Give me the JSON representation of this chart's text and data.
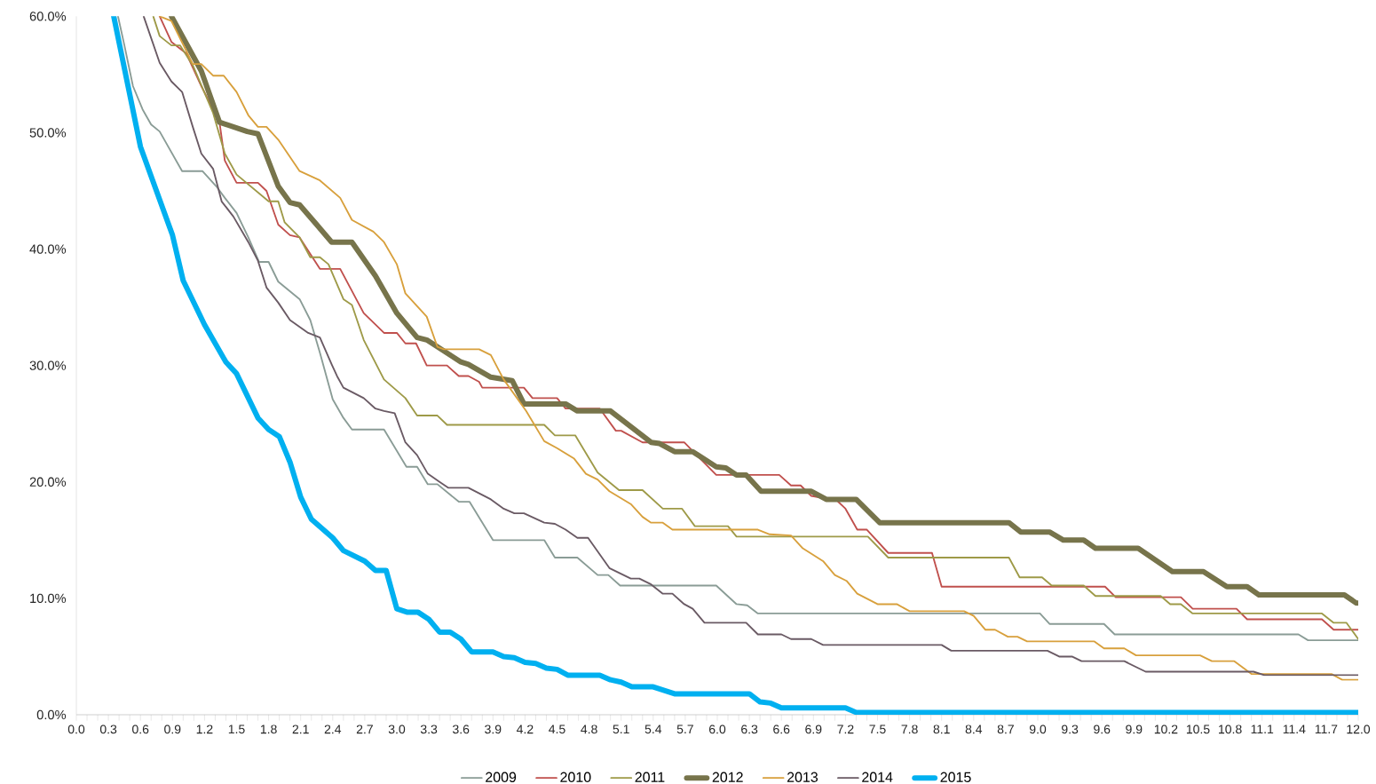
{
  "chart_data": {
    "type": "line",
    "ylim": [
      0,
      60
    ],
    "xlim": [
      0,
      12
    ],
    "yticks": [
      {
        "value": 0,
        "label": "0.0%"
      },
      {
        "value": 10,
        "label": "10.0%"
      },
      {
        "value": 20,
        "label": "20.0%"
      },
      {
        "value": 30,
        "label": "30.0%"
      },
      {
        "value": 40,
        "label": "40.0%"
      },
      {
        "value": 50,
        "label": "50.0%"
      },
      {
        "value": 60,
        "label": "60.0%"
      }
    ],
    "xticks": [
      {
        "value": 0,
        "label": "0.0"
      },
      {
        "value": 0.3,
        "label": "0.3"
      },
      {
        "value": 0.6,
        "label": "0.6"
      },
      {
        "value": 0.9,
        "label": "0.9"
      },
      {
        "value": 1.2,
        "label": "1.2"
      },
      {
        "value": 1.5,
        "label": "1.5"
      },
      {
        "value": 1.8,
        "label": "1.8"
      },
      {
        "value": 2.1,
        "label": "2.1"
      },
      {
        "value": 2.4,
        "label": "2.4"
      },
      {
        "value": 2.7,
        "label": "2.7"
      },
      {
        "value": 3,
        "label": "3.0"
      },
      {
        "value": 3.3,
        "label": "3.3"
      },
      {
        "value": 3.6,
        "label": "3.6"
      },
      {
        "value": 3.9,
        "label": "3.9"
      },
      {
        "value": 4.2,
        "label": "4.2"
      },
      {
        "value": 4.5,
        "label": "4.5"
      },
      {
        "value": 4.8,
        "label": "4.8"
      },
      {
        "value": 5.1,
        "label": "5.1"
      },
      {
        "value": 5.4,
        "label": "5.4"
      },
      {
        "value": 5.7,
        "label": "5.7"
      },
      {
        "value": 6,
        "label": "6.0"
      },
      {
        "value": 6.3,
        "label": "6.3"
      },
      {
        "value": 6.6,
        "label": "6.6"
      },
      {
        "value": 6.9,
        "label": "6.9"
      },
      {
        "value": 7.2,
        "label": "7.2"
      },
      {
        "value": 7.5,
        "label": "7.5"
      },
      {
        "value": 7.8,
        "label": "7.8"
      },
      {
        "value": 8.1,
        "label": "8.1"
      },
      {
        "value": 8.4,
        "label": "8.4"
      },
      {
        "value": 8.7,
        "label": "8.7"
      },
      {
        "value": 9,
        "label": "9.0"
      },
      {
        "value": 9.3,
        "label": "9.3"
      },
      {
        "value": 9.6,
        "label": "9.6"
      },
      {
        "value": 9.9,
        "label": "9.9"
      },
      {
        "value": 10.2,
        "label": "10.2"
      },
      {
        "value": 10.5,
        "label": "10.5"
      },
      {
        "value": 10.8,
        "label": "10.8"
      },
      {
        "value": 11.1,
        "label": "11.1"
      },
      {
        "value": 11.4,
        "label": "11.4"
      },
      {
        "value": 11.7,
        "label": "11.7"
      },
      {
        "value": 12,
        "label": "12.0"
      }
    ],
    "grid": false,
    "legend": "bottom",
    "marker": "none",
    "line_style": "solid",
    "series": [
      {
        "name": "2009",
        "color": "#8a9c96",
        "x": [
          0.39,
          0.45,
          0.53,
          0.62,
          0.7,
          0.78,
          0.99,
          1.18,
          1.31,
          1.39,
          1.5,
          1.61,
          1.71,
          1.8,
          1.89,
          2.09,
          2.19,
          2.28,
          2.4,
          2.5,
          2.58,
          2.88,
          3.09,
          3.19,
          3.29,
          3.38,
          3.58,
          3.68,
          3.9,
          4.38,
          4.48,
          4.69,
          4.88,
          4.98,
          5.09,
          5.99,
          6.18,
          6.28,
          6.38,
          9.02,
          9.11,
          9.62,
          9.72,
          11.44,
          11.53,
          12
        ],
        "values": [
          60,
          57.5,
          54.0,
          52.0,
          50.7,
          50.1,
          46.7,
          46.7,
          45.4,
          44.4,
          43.1,
          41.0,
          38.9,
          38.9,
          37.2,
          35.7,
          33.9,
          31.1,
          27.1,
          25.5,
          24.5,
          24.5,
          21.3,
          21.3,
          19.8,
          19.8,
          18.3,
          18.3,
          15.0,
          15.0,
          13.5,
          13.5,
          12.0,
          12.0,
          11.1,
          11.1,
          9.5,
          9.4,
          8.7,
          8.7,
          7.8,
          7.8,
          6.9,
          6.9,
          6.4,
          6.4
        ]
      },
      {
        "name": "2010",
        "color": "#c0504d",
        "x": [
          0.78,
          0.89,
          1.03,
          1.17,
          1.34,
          1.39,
          1.5,
          1.7,
          1.78,
          1.89,
          2.0,
          2.09,
          2.28,
          2.47,
          2.69,
          2.88,
          3.0,
          3.08,
          3.18,
          3.28,
          3.47,
          3.58,
          3.67,
          3.77,
          3.8,
          4.19,
          4.27,
          4.5,
          4.58,
          4.9,
          5.05,
          5.1,
          5.3,
          5.69,
          5.99,
          6.58,
          6.69,
          6.78,
          6.88,
          7.12,
          7.2,
          7.31,
          7.4,
          7.6,
          8.01,
          8.1,
          9.63,
          9.73,
          10.34,
          10.45,
          10.86,
          10.96,
          11.66,
          11.77,
          12
        ],
        "values": [
          60,
          57.8,
          56.8,
          54.0,
          50.9,
          47.6,
          45.7,
          45.7,
          45.0,
          42.1,
          41.2,
          41.0,
          38.3,
          38.3,
          34.5,
          32.8,
          32.8,
          31.9,
          31.9,
          30.0,
          30.0,
          29.1,
          29.1,
          28.6,
          28.1,
          28.1,
          27.2,
          27.2,
          26.3,
          26.3,
          24.4,
          24.4,
          23.4,
          23.4,
          20.6,
          20.6,
          19.7,
          19.7,
          18.8,
          18.4,
          17.7,
          15.9,
          15.9,
          13.9,
          13.9,
          11.0,
          11.0,
          10.1,
          10.1,
          9.1,
          9.1,
          8.2,
          8.2,
          7.3,
          7.3
        ]
      },
      {
        "name": "2011",
        "color": "#9e9a48",
        "x": [
          0.72,
          0.78,
          0.89,
          0.97,
          1.09,
          1.28,
          1.39,
          1.5,
          1.8,
          1.89,
          1.95,
          2.09,
          2.19,
          2.28,
          2.36,
          2.5,
          2.58,
          2.69,
          2.88,
          3.08,
          3.19,
          3.38,
          3.47,
          4.38,
          4.48,
          4.67,
          4.88,
          5.08,
          5.3,
          5.49,
          5.67,
          5.79,
          6.1,
          6.18,
          7.41,
          7.6,
          8.73,
          8.83,
          9.04,
          9.13,
          9.43,
          9.54,
          10.15,
          10.24,
          10.34,
          10.45,
          11.66,
          11.77,
          11.89,
          12
        ],
        "values": [
          60,
          58.3,
          57.5,
          57.5,
          55.8,
          51.7,
          48.2,
          46.4,
          44.1,
          44.1,
          42.3,
          41.0,
          39.3,
          39.3,
          38.7,
          35.7,
          35.2,
          32.2,
          28.8,
          27.2,
          25.7,
          25.7,
          24.9,
          24.9,
          24.0,
          24.0,
          20.8,
          19.3,
          19.3,
          17.7,
          17.7,
          16.2,
          16.2,
          15.3,
          15.3,
          13.5,
          13.5,
          11.8,
          11.8,
          11.1,
          11.1,
          10.2,
          10.2,
          9.5,
          9.5,
          8.7,
          8.7,
          7.9,
          7.9,
          6.5
        ]
      },
      {
        "name": "2012",
        "color": "#77744b",
        "x": [
          0.89,
          1.17,
          1.34,
          1.6,
          1.7,
          1.89,
          2.0,
          2.09,
          2.25,
          2.39,
          2.58,
          2.8,
          3.0,
          3.19,
          3.28,
          3.6,
          3.67,
          3.88,
          4.08,
          4.19,
          4.58,
          4.69,
          5.0,
          5.38,
          5.46,
          5.6,
          5.77,
          5.99,
          6.08,
          6.18,
          6.27,
          6.41,
          6.88,
          7.02,
          7.3,
          7.52,
          8.73,
          8.84,
          9.11,
          9.24,
          9.43,
          9.54,
          9.94,
          10.26,
          10.55,
          10.77,
          10.96,
          11.07,
          11.87,
          11.98,
          12
        ],
        "values": [
          60,
          55.3,
          50.9,
          50.1,
          49.9,
          45.4,
          44.0,
          43.8,
          42.1,
          40.6,
          40.6,
          37.7,
          34.5,
          32.4,
          32.2,
          30.3,
          30.1,
          29.0,
          28.7,
          26.7,
          26.7,
          26.1,
          26.1,
          23.4,
          23.3,
          22.6,
          22.6,
          21.3,
          21.2,
          20.6,
          20.6,
          19.2,
          19.2,
          18.5,
          18.5,
          16.5,
          16.5,
          15.7,
          15.7,
          15.0,
          15.0,
          14.3,
          14.3,
          12.3,
          12.3,
          11.0,
          11.0,
          10.3,
          10.3,
          9.6,
          9.6
        ]
      },
      {
        "name": "2013",
        "color": "#d8a03c",
        "x": [
          0.78,
          0.89,
          1.09,
          1.17,
          1.28,
          1.38,
          1.5,
          1.61,
          1.7,
          1.78,
          1.89,
          2.09,
          2.28,
          2.47,
          2.58,
          2.78,
          2.88,
          3.0,
          3.08,
          3.28,
          3.38,
          3.44,
          3.77,
          3.88,
          4.0,
          4.21,
          4.38,
          4.5,
          4.66,
          4.77,
          4.88,
          4.99,
          5.19,
          5.3,
          5.38,
          5.49,
          5.58,
          6.38,
          6.49,
          6.69,
          6.8,
          6.99,
          7.1,
          7.21,
          7.31,
          7.5,
          7.68,
          7.8,
          8.31,
          8.4,
          8.51,
          8.6,
          8.72,
          8.81,
          8.9,
          9.53,
          9.62,
          9.81,
          9.92,
          10.52,
          10.63,
          10.84,
          11.0,
          11.75,
          11.85,
          12
        ],
        "values": [
          60,
          59.6,
          55.9,
          55.9,
          54.9,
          54.9,
          53.5,
          51.5,
          50.5,
          50.5,
          49.4,
          46.7,
          45.9,
          44.4,
          42.5,
          41.5,
          40.6,
          38.7,
          36.2,
          34.2,
          31.6,
          31.4,
          31.4,
          30.9,
          28.8,
          26.1,
          23.5,
          22.9,
          22.0,
          20.7,
          20.2,
          19.2,
          18.1,
          17.0,
          16.5,
          16.5,
          15.9,
          15.9,
          15.5,
          15.4,
          14.3,
          13.2,
          12.0,
          11.5,
          10.4,
          9.5,
          9.5,
          8.9,
          8.9,
          8.5,
          7.3,
          7.3,
          6.7,
          6.7,
          6.3,
          6.3,
          5.7,
          5.7,
          5.1,
          5.1,
          4.6,
          4.6,
          3.5,
          3.5,
          3.0,
          3.0
        ]
      },
      {
        "name": "2014",
        "color": "#6a5a64",
        "x": [
          0.63,
          0.78,
          0.89,
          0.99,
          1.09,
          1.17,
          1.28,
          1.36,
          1.47,
          1.61,
          1.7,
          1.78,
          1.89,
          2.0,
          2.17,
          2.28,
          2.39,
          2.44,
          2.5,
          2.69,
          2.8,
          2.88,
          2.98,
          3.08,
          3.19,
          3.29,
          3.4,
          3.48,
          3.67,
          3.88,
          4.0,
          4.1,
          4.19,
          4.38,
          4.48,
          4.58,
          4.69,
          4.79,
          4.99,
          5.19,
          5.27,
          5.38,
          5.49,
          5.58,
          5.69,
          5.77,
          5.88,
          6.27,
          6.38,
          6.6,
          6.69,
          6.88,
          6.99,
          8.1,
          8.19,
          9.09,
          9.2,
          9.32,
          9.41,
          9.81,
          10.01,
          11.02,
          11.12,
          12
        ],
        "values": [
          60,
          56.0,
          54.4,
          53.5,
          50.5,
          48.2,
          46.9,
          44.1,
          42.8,
          40.6,
          39.0,
          36.7,
          35.4,
          33.9,
          32.8,
          32.4,
          30.1,
          29.1,
          28.1,
          27.2,
          26.3,
          26.1,
          25.9,
          23.4,
          22.3,
          20.7,
          20.0,
          19.5,
          19.5,
          18.5,
          17.7,
          17.3,
          17.3,
          16.5,
          16.4,
          15.9,
          15.2,
          15.2,
          12.6,
          11.7,
          11.7,
          11.2,
          10.4,
          10.4,
          9.5,
          9.1,
          7.9,
          7.9,
          6.9,
          6.9,
          6.5,
          6.5,
          6.0,
          6.0,
          5.5,
          5.5,
          5.0,
          5.0,
          4.6,
          4.6,
          3.7,
          3.7,
          3.4,
          3.4
        ]
      },
      {
        "name": "2015",
        "color": "#00b0f0",
        "x": [
          0.35,
          0.6,
          0.9,
          1.0,
          1.2,
          1.4,
          1.5,
          1.7,
          1.8,
          1.9,
          2.0,
          2.1,
          2.2,
          2.4,
          2.5,
          2.7,
          2.8,
          2.9,
          3.0,
          3.1,
          3.2,
          3.3,
          3.4,
          3.5,
          3.6,
          3.7,
          3.9,
          4.0,
          4.1,
          4.2,
          4.3,
          4.4,
          4.5,
          4.6,
          4.9,
          5.0,
          5.1,
          5.2,
          5.4,
          5.6,
          6.3,
          6.4,
          6.5,
          6.6,
          7.2,
          7.3,
          12
        ],
        "values": [
          60,
          48.8,
          41.2,
          37.3,
          33.5,
          30.3,
          29.3,
          25.5,
          24.5,
          23.9,
          21.7,
          18.7,
          16.8,
          15.2,
          14.1,
          13.2,
          12.4,
          12.4,
          9.1,
          8.8,
          8.8,
          8.2,
          7.1,
          7.1,
          6.5,
          5.4,
          5.4,
          5.0,
          4.9,
          4.5,
          4.4,
          4.0,
          3.9,
          3.4,
          3.4,
          3.0,
          2.8,
          2.4,
          2.4,
          1.8,
          1.8,
          1.1,
          1.0,
          0.6,
          0.6,
          0.2,
          0.2
        ]
      }
    ]
  }
}
